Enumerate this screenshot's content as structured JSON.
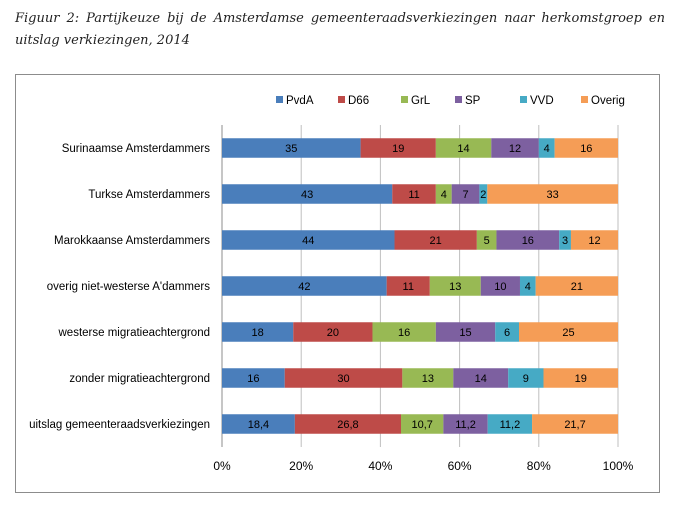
{
  "caption": "Figuur 2: Partijkeuze bij de Amsterdamse gemeenteraadsverkiezingen naar herkomstgroep en uitslag verkiezingen, 2014",
  "chart_data": {
    "type": "bar",
    "orientation": "horizontal",
    "stacked": "percent",
    "categories": [
      "Surinaamse Amsterdammers",
      "Turkse Amsterdammers",
      "Marokkaanse Amsterdammers",
      "overig niet-westerse A'dammers",
      "westerse migratieachtergrond",
      "zonder migratieachtergrond",
      "uitslag gemeenteraadsverkiezingen"
    ],
    "series": [
      {
        "name": "PvdA",
        "color": "#4a7ebb",
        "values": [
          35,
          43,
          44,
          42,
          18,
          16,
          18.4
        ],
        "labels": [
          "35",
          "43",
          "44",
          "42",
          "18",
          "16",
          "18,4"
        ]
      },
      {
        "name": "D66",
        "color": "#be4b48",
        "values": [
          19,
          11,
          21,
          11,
          20,
          30,
          26.8
        ],
        "labels": [
          "19",
          "11",
          "21",
          "11",
          "20",
          "30",
          "26,8"
        ]
      },
      {
        "name": "GrL",
        "color": "#98b954",
        "values": [
          14,
          4,
          5,
          13,
          16,
          13,
          10.7
        ],
        "labels": [
          "14",
          "4",
          "5",
          "13",
          "16",
          "13",
          "10,7"
        ]
      },
      {
        "name": "SP",
        "color": "#7d60a0",
        "values": [
          12,
          7,
          16,
          10,
          15,
          14,
          11.2
        ],
        "labels": [
          "12",
          "7",
          "16",
          "10",
          "15",
          "14",
          "11,2"
        ]
      },
      {
        "name": "VVD",
        "color": "#46aac5",
        "values": [
          4,
          2,
          3,
          4,
          6,
          9,
          11.2
        ],
        "labels": [
          "4",
          "2",
          "3",
          "4",
          "6",
          "9",
          "11,2"
        ]
      },
      {
        "name": "Overig",
        "color": "#f59d56",
        "values": [
          16,
          33,
          12,
          21,
          25,
          19,
          21.7
        ],
        "labels": [
          "16",
          "33",
          "12",
          "21",
          "25",
          "19",
          "21,7"
        ]
      }
    ],
    "x_ticks": [
      "0%",
      "20%",
      "40%",
      "60%",
      "80%",
      "100%"
    ],
    "xlim": [
      0,
      100
    ],
    "grid": true,
    "legend": "top"
  }
}
